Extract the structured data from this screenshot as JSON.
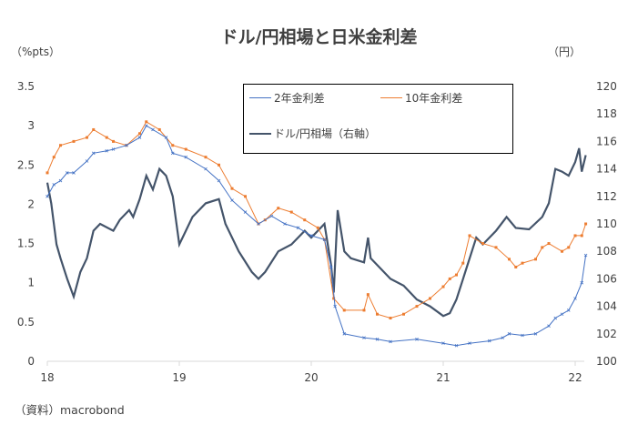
{
  "chart_data": {
    "type": "line",
    "title": "ドル/円相場と日米金利差",
    "ylabel_left": "（%pts）",
    "ylabel_right": "（円）",
    "source": "（資料）macrobond",
    "xlim": [
      2018,
      2022.1
    ],
    "ylim_left": [
      0,
      3.5
    ],
    "ylim_right": [
      100,
      120
    ],
    "x_ticks": [
      {
        "v": 2018,
        "label": "18"
      },
      {
        "v": 2019,
        "label": "19"
      },
      {
        "v": 2020,
        "label": "20"
      },
      {
        "v": 2021,
        "label": "21"
      },
      {
        "v": 2022,
        "label": "22"
      }
    ],
    "left_ticks": [
      "0",
      "0.5",
      "1",
      "1.5",
      "2",
      "2.5",
      "3",
      "3.5"
    ],
    "right_ticks": [
      "100",
      "102",
      "104",
      "106",
      "108",
      "110",
      "112",
      "114",
      "116",
      "118",
      "120"
    ],
    "legend": {
      "placement": "top-center"
    },
    "series": [
      {
        "name": "2年金利差",
        "axis": "left",
        "color": "#4472C4",
        "marker": "x",
        "x": [
          2018.0,
          2018.05,
          2018.1,
          2018.15,
          2018.2,
          2018.3,
          2018.35,
          2018.45,
          2018.5,
          2018.6,
          2018.7,
          2018.75,
          2018.8,
          2018.9,
          2018.95,
          2019.05,
          2019.2,
          2019.3,
          2019.4,
          2019.5,
          2019.6,
          2019.7,
          2019.8,
          2019.9,
          2020.0,
          2020.1,
          2020.15,
          2020.18,
          2020.25,
          2020.4,
          2020.5,
          2020.6,
          2020.8,
          2021.0,
          2021.1,
          2021.2,
          2021.35,
          2021.45,
          2021.5,
          2021.6,
          2021.7,
          2021.8,
          2021.85,
          2021.9,
          2021.95,
          2022.0,
          2022.05,
          2022.08
        ],
        "y": [
          2.1,
          2.25,
          2.3,
          2.4,
          2.4,
          2.55,
          2.65,
          2.68,
          2.7,
          2.75,
          2.85,
          3.0,
          2.95,
          2.85,
          2.65,
          2.6,
          2.45,
          2.3,
          2.05,
          1.9,
          1.75,
          1.85,
          1.75,
          1.7,
          1.6,
          1.55,
          1.2,
          0.7,
          0.35,
          0.3,
          0.28,
          0.25,
          0.28,
          0.23,
          0.2,
          0.23,
          0.26,
          0.3,
          0.35,
          0.33,
          0.35,
          0.45,
          0.55,
          0.6,
          0.65,
          0.8,
          1.0,
          1.35
        ]
      },
      {
        "name": "10年金利差",
        "axis": "left",
        "color": "#ED7D31",
        "marker": "square",
        "x": [
          2018.0,
          2018.05,
          2018.1,
          2018.2,
          2018.3,
          2018.35,
          2018.45,
          2018.5,
          2018.6,
          2018.7,
          2018.75,
          2018.85,
          2018.95,
          2019.05,
          2019.2,
          2019.3,
          2019.4,
          2019.5,
          2019.6,
          2019.65,
          2019.75,
          2019.85,
          2019.95,
          2020.05,
          2020.1,
          2020.17,
          2020.25,
          2020.4,
          2020.43,
          2020.5,
          2020.6,
          2020.7,
          2020.8,
          2020.9,
          2021.0,
          2021.05,
          2021.1,
          2021.15,
          2021.2,
          2021.3,
          2021.4,
          2021.5,
          2021.55,
          2021.6,
          2021.7,
          2021.75,
          2021.8,
          2021.9,
          2021.95,
          2022.0,
          2022.05,
          2022.08
        ],
        "y": [
          2.4,
          2.6,
          2.75,
          2.8,
          2.85,
          2.95,
          2.85,
          2.8,
          2.75,
          2.9,
          3.05,
          2.95,
          2.75,
          2.7,
          2.6,
          2.5,
          2.2,
          2.1,
          1.75,
          1.8,
          1.95,
          1.9,
          1.8,
          1.7,
          1.55,
          0.8,
          0.65,
          0.65,
          0.85,
          0.6,
          0.55,
          0.6,
          0.7,
          0.8,
          0.95,
          1.05,
          1.1,
          1.25,
          1.6,
          1.5,
          1.45,
          1.3,
          1.2,
          1.25,
          1.3,
          1.45,
          1.5,
          1.4,
          1.45,
          1.6,
          1.6,
          1.75
        ]
      },
      {
        "name": "ドル/円相場（右軸）",
        "axis": "right",
        "color": "#44546A",
        "marker": "none",
        "x": [
          2018.0,
          2018.03,
          2018.07,
          2018.1,
          2018.15,
          2018.2,
          2018.25,
          2018.3,
          2018.35,
          2018.4,
          2018.5,
          2018.55,
          2018.62,
          2018.65,
          2018.7,
          2018.75,
          2018.8,
          2018.85,
          2018.9,
          2018.95,
          2019.0,
          2019.05,
          2019.1,
          2019.2,
          2019.3,
          2019.35,
          2019.45,
          2019.55,
          2019.6,
          2019.65,
          2019.75,
          2019.85,
          2019.95,
          2020.0,
          2020.1,
          2020.15,
          2020.17,
          2020.2,
          2020.25,
          2020.3,
          2020.4,
          2020.43,
          2020.45,
          2020.5,
          2020.6,
          2020.7,
          2020.8,
          2020.9,
          2021.0,
          2021.05,
          2021.1,
          2021.15,
          2021.25,
          2021.3,
          2021.4,
          2021.48,
          2021.55,
          2021.65,
          2021.75,
          2021.8,
          2021.85,
          2021.9,
          2021.95,
          2022.0,
          2022.03,
          2022.05,
          2022.08
        ],
        "y": [
          113,
          111.5,
          108.5,
          107.5,
          106,
          104.7,
          106.5,
          107.5,
          109.5,
          110,
          109.5,
          110.3,
          111,
          110.5,
          111.8,
          113.5,
          112.5,
          114,
          113.5,
          112,
          108.5,
          109.5,
          110.5,
          111.5,
          111.8,
          110,
          108,
          106.5,
          106,
          106.5,
          108,
          108.5,
          109.5,
          109,
          110,
          107,
          105,
          111,
          108,
          107.5,
          107.2,
          109,
          107.5,
          107,
          106,
          105.5,
          104.5,
          104,
          103.3,
          103.5,
          104.5,
          106,
          109,
          108.5,
          109.5,
          110.5,
          109.7,
          109.6,
          110.5,
          111.5,
          114,
          113.8,
          113.5,
          114.5,
          115.5,
          113.8,
          115
        ]
      }
    ]
  }
}
